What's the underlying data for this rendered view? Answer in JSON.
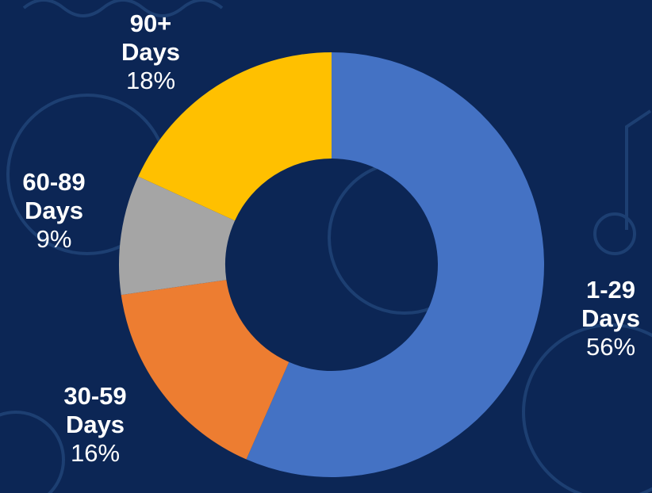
{
  "chart_data": {
    "type": "donut",
    "categories": [
      "1-29 Days",
      "30-59 Days",
      "60-89 Days",
      "90+ Days"
    ],
    "values": [
      56,
      16,
      9,
      18
    ],
    "value_labels": [
      "56%",
      "16%",
      "9%",
      "18%"
    ],
    "colors": [
      "#4472c4",
      "#ed7d31",
      "#a5a5a5",
      "#ffc000"
    ]
  }
}
